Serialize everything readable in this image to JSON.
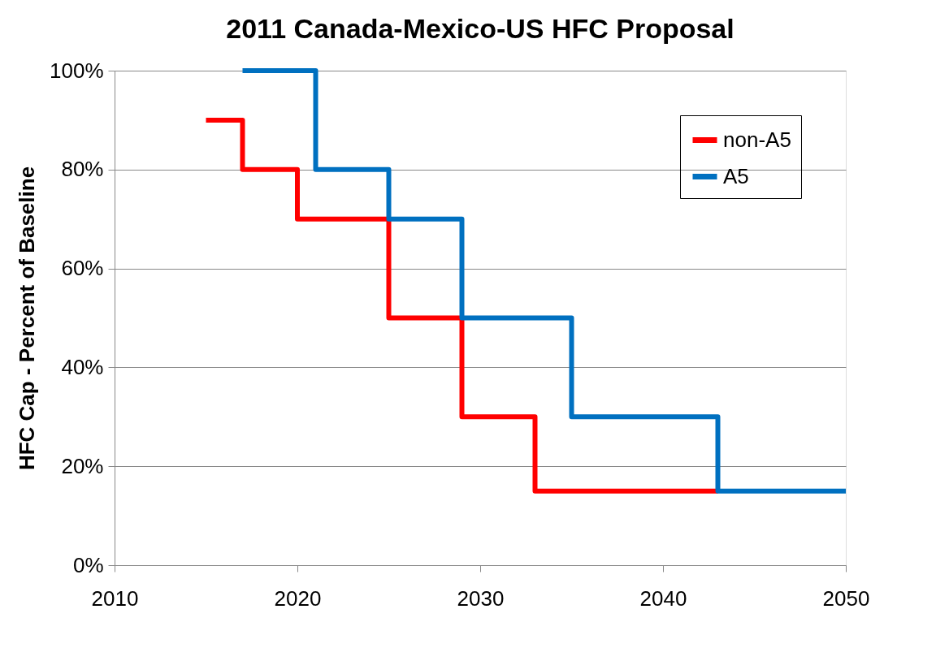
{
  "chart_data": {
    "type": "step",
    "title": "2011 Canada-Mexico-US HFC Proposal",
    "ylabel": "HFC Cap - Percent of Baseline",
    "xlim": [
      2010,
      2050
    ],
    "xticks": [
      2010,
      2020,
      2030,
      2040,
      2050
    ],
    "ylim": [
      0,
      100
    ],
    "yticks": [
      {
        "value": 0,
        "label": "0%"
      },
      {
        "value": 20,
        "label": "20%"
      },
      {
        "value": 40,
        "label": "40%"
      },
      {
        "value": 60,
        "label": "60%"
      },
      {
        "value": 80,
        "label": "80%"
      },
      {
        "value": 100,
        "label": "100%"
      }
    ],
    "grid": "y",
    "legend": "top right",
    "marker": "none",
    "series": [
      {
        "name": "non-A5",
        "color": "#ff0000",
        "x": [
          2015,
          2017,
          2020,
          2025,
          2029,
          2033,
          2043
        ],
        "values": [
          90,
          80,
          70,
          50,
          30,
          15,
          15
        ]
      },
      {
        "name": "A5",
        "color": "#0070c0",
        "x": [
          2017,
          2021,
          2025,
          2029,
          2035,
          2043,
          2050
        ],
        "values": [
          100,
          80,
          70,
          50,
          30,
          15,
          15
        ]
      }
    ]
  }
}
